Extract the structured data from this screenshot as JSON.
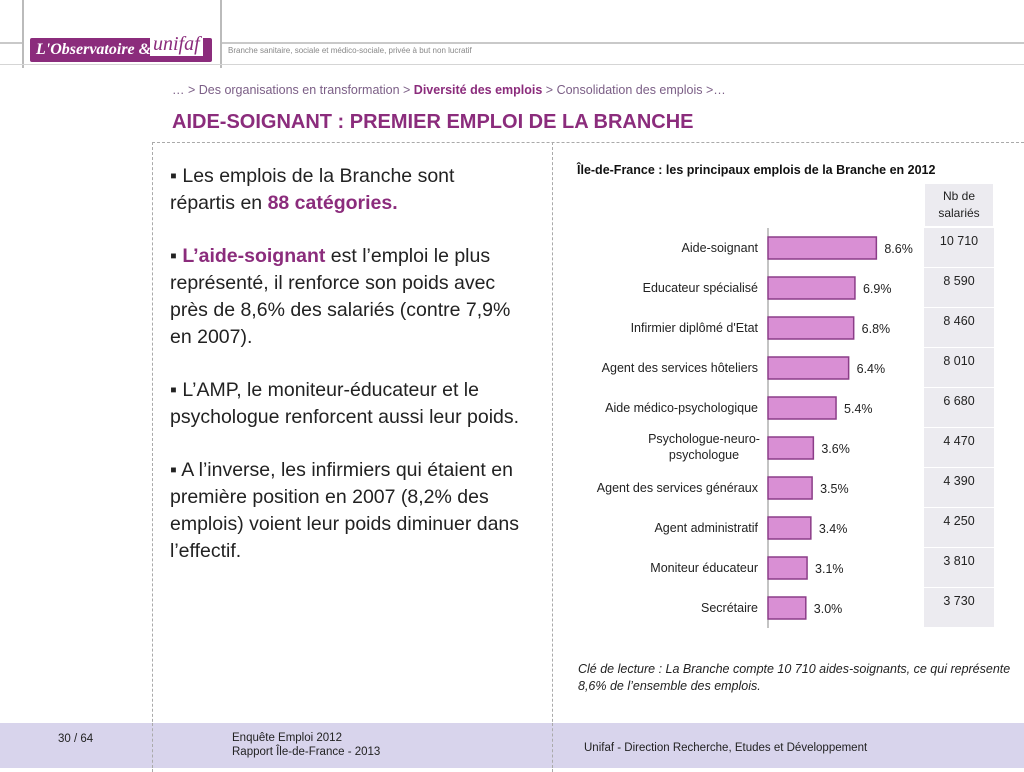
{
  "header": {
    "logo_main": "L'Observatoire",
    "logo_amp": "&",
    "logo_unifaf": "unifaf",
    "tagline": "Branche sanitaire, sociale et médico-sociale, privée à but non lucratif"
  },
  "breadcrumb": {
    "prefix": "… > Des organisations en transformation > ",
    "current": "Diversité des emplois",
    "suffix": " > Consolidation des emplois >…"
  },
  "title": "AIDE-SOIGNANT : PREMIER EMPLOI DE LA BRANCHE",
  "left": {
    "p1_pre": "Les emplois de la Branche sont répartis en ",
    "p1_hl": "88 catégories.",
    "p2_hl": "L’aide-soignant",
    "p2_post": " est l’emploi le plus représenté, il renforce son poids avec près de 8,6% des salariés (contre 7,9% en 2007).",
    "p3": "L’AMP, le moniteur-éducateur et le psychologue renforcent aussi leur poids.",
    "p4": "A l’inverse, les infirmiers qui étaient en première position en 2007 (8,2% des emplois) voient leur poids diminuer dans l’effectif."
  },
  "colors": {
    "accent": "#8b2c7c",
    "bar_fill": "#d98fd4",
    "bar_stroke": "#8b3d88",
    "footer": "#d8d4ec"
  },
  "table_header": "Nb de salariés",
  "chart_data": {
    "type": "bar",
    "orientation": "horizontal",
    "title": "Île-de-France : les principaux emplois de la Branche en 2012",
    "categories": [
      "Aide-soignant",
      "Educateur spécialisé",
      "Infirmier diplômé d'Etat",
      "Agent des services hôteliers",
      "Aide médico-psychologique",
      "Psychologue-neuro-psychologue",
      "Agent des services généraux",
      "Agent administratif",
      "Moniteur éducateur",
      "Secrétaire"
    ],
    "values": [
      8.6,
      6.9,
      6.8,
      6.4,
      5.4,
      3.6,
      3.5,
      3.4,
      3.1,
      3.0
    ],
    "value_labels": [
      "8.6%",
      "6.9%",
      "6.8%",
      "6.4%",
      "5.4%",
      "3.6%",
      "3.5%",
      "3.4%",
      "3.1%",
      "3.0%"
    ],
    "salaries": [
      "10 710",
      "8 590",
      "8 460",
      "8 010",
      "6 680",
      "4 470",
      "4 390",
      "4 250",
      "3 810",
      "3 730"
    ],
    "xlim": [
      0,
      10
    ],
    "grid": false,
    "legend": "none"
  },
  "caption": "Clé de lecture : La Branche compte 10 710 aides-soignants, ce qui représente 8,6% de l’ensemble des emplois.",
  "footer": {
    "page": "30 / 64",
    "report_line1": "Enquête Emploi 2012",
    "report_line2": "Rapport Île-de-France - 2013",
    "org": "Unifaf - Direction Recherche, Etudes et Développement"
  }
}
